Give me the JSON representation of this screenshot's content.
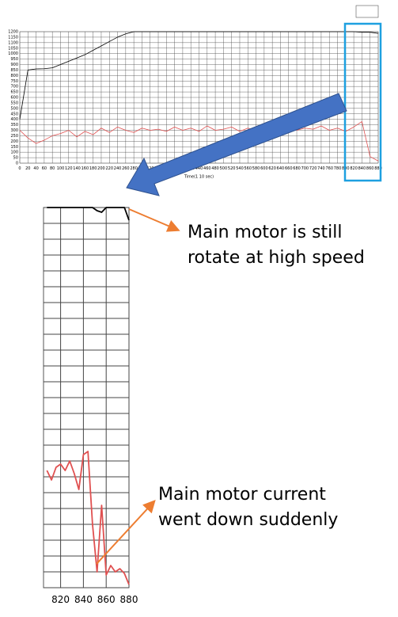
{
  "chart_data": [
    {
      "type": "line",
      "xlabel": "Time(1 10 sec)",
      "x": [
        0,
        20,
        40,
        60,
        80,
        100,
        120,
        140,
        160,
        180,
        200,
        220,
        240,
        260,
        280,
        300,
        320,
        340,
        360,
        380,
        400,
        420,
        440,
        460,
        480,
        500,
        520,
        540,
        560,
        580,
        600,
        620,
        640,
        660,
        680,
        700,
        720,
        740,
        760,
        780,
        800,
        820,
        840,
        860,
        880
      ],
      "series": [
        {
          "color": "#000000",
          "values": [
            400,
            850,
            860,
            862,
            870,
            900,
            930,
            960,
            990,
            1030,
            1070,
            1110,
            1150,
            1180,
            1200,
            1200,
            1200,
            1200,
            1200,
            1200,
            1200,
            1200,
            1200,
            1200,
            1200,
            1200,
            1200,
            1200,
            1200,
            1200,
            1200,
            1200,
            1200,
            1200,
            1200,
            1200,
            1200,
            1200,
            1200,
            1200,
            1200,
            1200,
            1195,
            1195,
            1185
          ]
        },
        {
          "color": "#e05050",
          "values": [
            300,
            230,
            180,
            210,
            250,
            270,
            300,
            240,
            290,
            260,
            320,
            280,
            330,
            300,
            280,
            320,
            300,
            310,
            290,
            330,
            300,
            320,
            290,
            340,
            300,
            310,
            330,
            290,
            320,
            300,
            340,
            310,
            290,
            330,
            300,
            320,
            310,
            340,
            300,
            320,
            290,
            330,
            380,
            60,
            20
          ]
        }
      ],
      "xlim": [
        0,
        880
      ],
      "ylim": [
        0,
        1200
      ],
      "xticks": [
        0,
        20,
        40,
        60,
        80,
        100,
        120,
        140,
        160,
        180,
        200,
        220,
        240,
        260,
        280,
        300,
        320,
        340,
        360,
        380,
        400,
        420,
        440,
        460,
        480,
        500,
        520,
        540,
        560,
        580,
        600,
        620,
        640,
        660,
        680,
        700,
        720,
        740,
        760,
        780,
        800,
        820,
        840,
        860,
        880
      ],
      "yticks": [
        0,
        50,
        100,
        150,
        200,
        250,
        300,
        350,
        400,
        450,
        500,
        550,
        600,
        650,
        700,
        750,
        800,
        850,
        900,
        950,
        1000,
        1050,
        1100,
        1150,
        1200
      ],
      "grid": true,
      "show_ytick_labels": true
    },
    {
      "type": "line",
      "x": [
        808,
        812,
        816,
        820,
        824,
        828,
        832,
        836,
        840,
        844,
        848,
        852,
        856,
        860,
        864,
        868,
        872,
        876,
        880
      ],
      "series": [
        {
          "color": "#000000",
          "values": [
            1200,
            1200,
            1200,
            1200,
            1200,
            1200,
            1200,
            1200,
            1200,
            1200,
            1200,
            1190,
            1185,
            1200,
            1200,
            1200,
            1200,
            1200,
            1160
          ]
        },
        {
          "color": "#e05050",
          "values": [
            370,
            340,
            380,
            390,
            370,
            400,
            360,
            310,
            420,
            430,
            200,
            50,
            260,
            40,
            70,
            50,
            60,
            45,
            10
          ]
        }
      ],
      "xlim": [
        805,
        880
      ],
      "ylim": [
        0,
        1200
      ],
      "xticks": [
        820,
        840,
        860,
        880
      ],
      "yticks": [
        0,
        50,
        100,
        150,
        200,
        250,
        300,
        350,
        400,
        450,
        500,
        550,
        600,
        650,
        700,
        750,
        800,
        850,
        900,
        950,
        1000,
        1050,
        1100,
        1150,
        1200
      ],
      "grid": true,
      "show_ytick_labels": false,
      "annotations": [
        {
          "lines": [
            "Main motor is still",
            "rotate at high speed"
          ]
        },
        {
          "lines": [
            "Main motor current",
            "went down suddenly"
          ]
        }
      ]
    }
  ]
}
